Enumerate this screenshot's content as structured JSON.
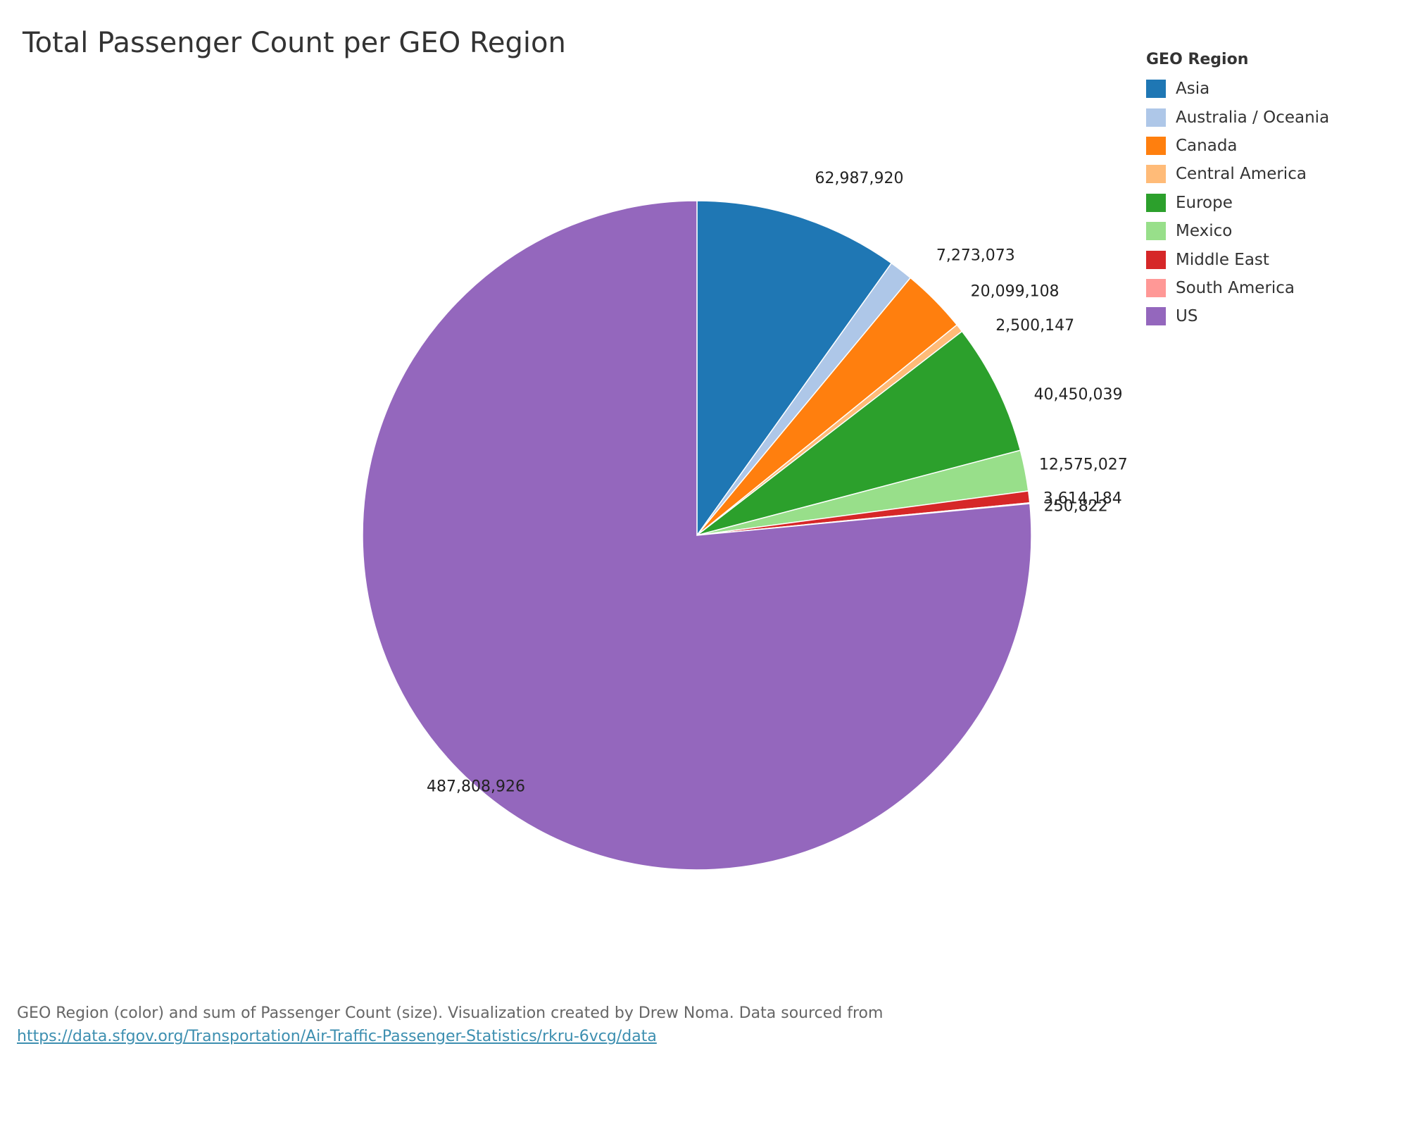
{
  "chart_data": {
    "type": "pie",
    "title": "Total Passenger Count per GEO Region",
    "legend_title": "GEO Region",
    "legend_position": "right",
    "slices": [
      {
        "name": "Asia",
        "value": 62987920,
        "label": "62,987,920",
        "color": "#1f77b4"
      },
      {
        "name": "Australia / Oceania",
        "value": 7273073,
        "label": "7,273,073",
        "color": "#aec7e8"
      },
      {
        "name": "Canada",
        "value": 20099108,
        "label": "20,099,108",
        "color": "#ff7f0e"
      },
      {
        "name": "Central America",
        "value": 2500147,
        "label": "2,500,147",
        "color": "#ffbb78"
      },
      {
        "name": "Europe",
        "value": 40450039,
        "label": "40,450,039",
        "color": "#2ca02c"
      },
      {
        "name": "Mexico",
        "value": 12575027,
        "label": "12,575,027",
        "color": "#98df8a"
      },
      {
        "name": "Middle East",
        "value": 3614184,
        "label": "3,614,184",
        "color": "#d62728"
      },
      {
        "name": "South America",
        "value": 250822,
        "label": "250,822",
        "color": "#ff9896"
      },
      {
        "name": "US",
        "value": 487808926,
        "label": "487,808,926",
        "color": "#9467bd"
      }
    ]
  },
  "caption": {
    "text": "GEO Region (color) and sum of Passenger Count (size). Visualization created by Drew Noma. Data sourced from",
    "link": "https://data.sfgov.org/Transportation/Air-Traffic-Passenger-Statistics/rkru-6vcg/data"
  }
}
